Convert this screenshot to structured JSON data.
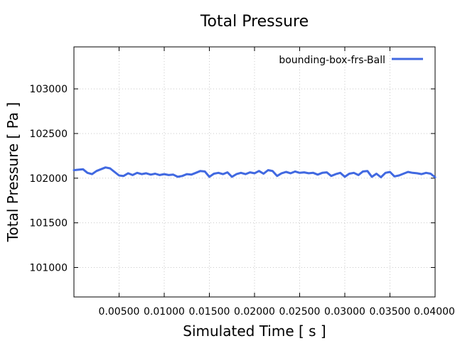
{
  "chart_data": {
    "type": "line",
    "title": "Total Pressure",
    "xlabel": "Simulated Time [ s ]",
    "ylabel": "Total Pressure [ Pa ]",
    "xlim": [
      0.0,
      0.04
    ],
    "ylim": [
      100670,
      103470
    ],
    "xticks": [
      0.005,
      0.01,
      0.015,
      0.02,
      0.025,
      0.03,
      0.035,
      0.04
    ],
    "xtick_labels": [
      "0.00500",
      "0.01000",
      "0.01500",
      "0.02000",
      "0.02500",
      "0.03000",
      "0.03500",
      "0.04000"
    ],
    "yticks": [
      101000,
      101500,
      102000,
      102500,
      103000
    ],
    "ytick_labels": [
      "101000",
      "101500",
      "102000",
      "102500",
      "103000"
    ],
    "grid": true,
    "legend_position": "top-right",
    "series": [
      {
        "name": "bounding-box-frs-Ball",
        "color": "#4169e1",
        "x": [
          0.0,
          0.0005,
          0.001,
          0.0015,
          0.002,
          0.0025,
          0.003,
          0.0035,
          0.004,
          0.0045,
          0.005,
          0.0055,
          0.006,
          0.0065,
          0.007,
          0.0075,
          0.008,
          0.0085,
          0.009,
          0.0095,
          0.01,
          0.0105,
          0.011,
          0.0115,
          0.012,
          0.0125,
          0.013,
          0.0135,
          0.014,
          0.0145,
          0.015,
          0.0155,
          0.016,
          0.0165,
          0.017,
          0.0175,
          0.018,
          0.0185,
          0.019,
          0.0195,
          0.02,
          0.0205,
          0.021,
          0.0215,
          0.022,
          0.0225,
          0.023,
          0.0235,
          0.024,
          0.0245,
          0.025,
          0.0255,
          0.026,
          0.0265,
          0.027,
          0.0275,
          0.028,
          0.0285,
          0.029,
          0.0295,
          0.03,
          0.0305,
          0.031,
          0.0315,
          0.032,
          0.0325,
          0.033,
          0.0335,
          0.034,
          0.0345,
          0.035,
          0.0355,
          0.036,
          0.0365,
          0.037,
          0.0375,
          0.038,
          0.0385,
          0.039,
          0.0395,
          0.04
        ],
        "y": [
          102090,
          102095,
          102100,
          102060,
          102045,
          102080,
          102100,
          102120,
          102110,
          102070,
          102030,
          102025,
          102055,
          102035,
          102060,
          102045,
          102055,
          102040,
          102050,
          102035,
          102045,
          102035,
          102040,
          102015,
          102025,
          102045,
          102040,
          102060,
          102080,
          102075,
          102015,
          102050,
          102060,
          102045,
          102065,
          102015,
          102045,
          102060,
          102045,
          102065,
          102055,
          102080,
          102050,
          102090,
          102080,
          102025,
          102055,
          102070,
          102055,
          102075,
          102060,
          102065,
          102055,
          102060,
          102040,
          102060,
          102065,
          102025,
          102045,
          102060,
          102015,
          102050,
          102060,
          102035,
          102075,
          102080,
          102015,
          102050,
          102010,
          102060,
          102070,
          102020,
          102030,
          102050,
          102070,
          102060,
          102055,
          102045,
          102060,
          102050,
          102010
        ]
      }
    ]
  }
}
